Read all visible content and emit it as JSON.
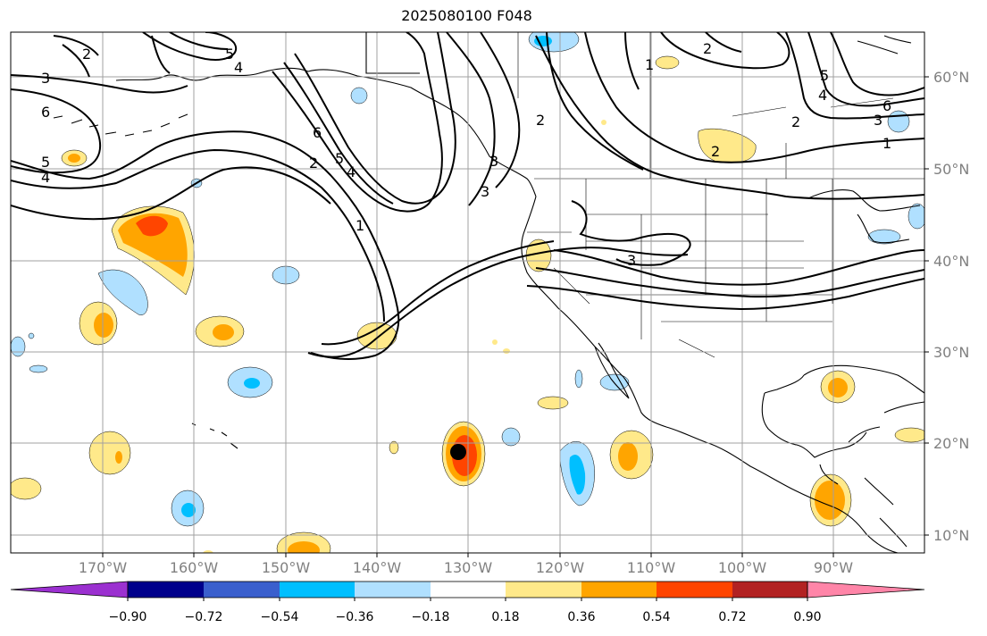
{
  "title": "2025080100 F048",
  "lat_labels": [
    "60°N",
    "50°N",
    "40°N",
    "30°N",
    "20°N",
    "10°N"
  ],
  "lon_labels": [
    "170°W",
    "160°W",
    "150°W",
    "140°W",
    "130°W",
    "120°W",
    "110°W",
    "100°W",
    "90°W"
  ],
  "colorbar": {
    "ticks": [
      "−0.90",
      "−0.72",
      "−0.54",
      "−0.36",
      "−0.18",
      "0.18",
      "0.36",
      "0.54",
      "0.72",
      "0.90"
    ],
    "colors": [
      "#9b30d0",
      "#00008b",
      "#3a5fcd",
      "#00bfff",
      "#b0e0ff",
      "#ffffff",
      "#ffe98a",
      "#ffa500",
      "#ff4500",
      "#b22222",
      "#ff85a8"
    ]
  },
  "contour_labels": [
    "3",
    "6",
    "5",
    "4",
    "2",
    "5",
    "4",
    "6",
    "5",
    "4",
    "1",
    "3",
    "2",
    "3",
    "1",
    "2",
    "2",
    "4",
    "5",
    "6",
    "3",
    "2",
    "1",
    "2",
    "3"
  ],
  "storm_marker": "storm-center"
}
